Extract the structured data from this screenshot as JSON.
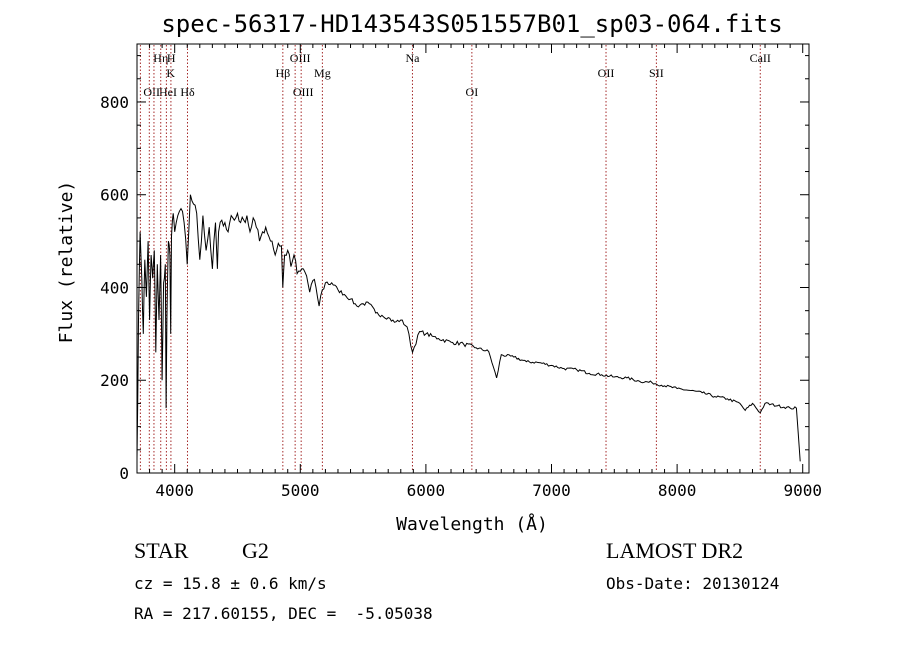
{
  "chart_data": {
    "type": "line",
    "title": "spec-56317-HD143543S051557B01_sp03-064.fits",
    "xlabel": "Wavelength (Å)",
    "ylabel": "Flux (relative)",
    "xlim": [
      3700,
      9050
    ],
    "ylim": [
      0,
      925
    ],
    "xticks": [
      4000,
      5000,
      6000,
      7000,
      8000,
      9000
    ],
    "xtick_labels": [
      "4000",
      "5000",
      "6000",
      "7000",
      "8000",
      "9000"
    ],
    "yticks": [
      0,
      200,
      400,
      600,
      800
    ],
    "ytick_labels": [
      "0",
      "200",
      "400",
      "600",
      "800"
    ],
    "grid": false,
    "line_color": "#000000",
    "marker_color": "#a52a2a",
    "series": [
      {
        "x": [
          3700,
          3712,
          3725,
          3738,
          3750,
          3762,
          3775,
          3788,
          3800,
          3812,
          3825,
          3838,
          3850,
          3862,
          3875,
          3888,
          3900,
          3912,
          3925,
          3932,
          3938,
          3950,
          3962,
          3968,
          3975,
          3988,
          4000,
          4025,
          4050,
          4075,
          4100,
          4125,
          4150,
          4175,
          4200,
          4225,
          4250,
          4275,
          4300,
          4325,
          4340,
          4350,
          4375,
          4400,
          4425,
          4450,
          4475,
          4500,
          4525,
          4550,
          4575,
          4600,
          4625,
          4650,
          4675,
          4700,
          4725,
          4750,
          4775,
          4800,
          4825,
          4850,
          4861,
          4875,
          4900,
          4925,
          4950,
          4975,
          5000,
          5025,
          5050,
          5075,
          5100,
          5125,
          5150,
          5175,
          5200,
          5250,
          5300,
          5350,
          5400,
          5450,
          5500,
          5550,
          5600,
          5650,
          5700,
          5750,
          5800,
          5850,
          5893,
          5950,
          6000,
          6050,
          6100,
          6200,
          6300,
          6400,
          6500,
          6563,
          6600,
          6700,
          6800,
          6900,
          7000,
          7100,
          7200,
          7300,
          7400,
          7500,
          7600,
          7700,
          7800,
          7900,
          8000,
          8100,
          8200,
          8300,
          8400,
          8500,
          8542,
          8600,
          8662,
          8700,
          8800,
          8900,
          8950,
          8980
        ],
        "y": [
          30,
          330,
          520,
          420,
          300,
          460,
          380,
          500,
          330,
          470,
          420,
          480,
          260,
          450,
          330,
          470,
          200,
          410,
          450,
          140,
          330,
          500,
          470,
          300,
          510,
          560,
          520,
          555,
          570,
          540,
          450,
          600,
          580,
          560,
          460,
          555,
          480,
          530,
          440,
          540,
          440,
          520,
          545,
          540,
          520,
          555,
          545,
          560,
          540,
          545,
          555,
          520,
          550,
          530,
          500,
          520,
          530,
          510,
          500,
          470,
          495,
          490,
          400,
          470,
          480,
          445,
          470,
          430,
          435,
          440,
          425,
          390,
          415,
          400,
          360,
          395,
          410,
          410,
          395,
          385,
          375,
          360,
          365,
          365,
          345,
          340,
          335,
          325,
          330,
          315,
          260,
          305,
          300,
          295,
          290,
          282,
          278,
          270,
          262,
          205,
          255,
          250,
          240,
          238,
          232,
          225,
          223,
          215,
          212,
          207,
          205,
          198,
          195,
          188,
          182,
          178,
          173,
          165,
          160,
          150,
          135,
          150,
          130,
          150,
          145,
          140,
          140,
          25
        ]
      }
    ],
    "lines": [
      {
        "x": 3727,
        "label": "OII",
        "row": 3,
        "anchor": "start",
        "dx": 3
      },
      {
        "x": 3798,
        "label": "Hη",
        "row": 1,
        "anchor": "start",
        "dx": 4
      },
      {
        "x": 3835,
        "label": "HeI",
        "row": 3,
        "anchor": "start",
        "dx": 5
      },
      {
        "x": 3889,
        "label": "",
        "row": 0,
        "anchor": "start",
        "dx": 0
      },
      {
        "x": 3934,
        "label": "K",
        "row": 2,
        "anchor": "start",
        "dx": 0
      },
      {
        "x": 3970,
        "label": "H",
        "row": 1,
        "anchor": "start",
        "dx": -4
      },
      {
        "x": 4102,
        "label": "Hδ",
        "row": 3,
        "anchor": "middle",
        "dx": 0
      },
      {
        "x": 4861,
        "label": "Hβ",
        "row": 2,
        "anchor": "middle",
        "dx": 0
      },
      {
        "x": 4959,
        "label": "OIII",
        "row": 1,
        "anchor": "middle",
        "dx": 5
      },
      {
        "x": 5007,
        "label": "OIII",
        "row": 3,
        "anchor": "middle",
        "dx": 2
      },
      {
        "x": 5176,
        "label": "Mg",
        "row": 2,
        "anchor": "middle",
        "dx": 0
      },
      {
        "x": 5893,
        "label": "Na",
        "row": 1,
        "anchor": "middle",
        "dx": 0
      },
      {
        "x": 6366,
        "label": "OI",
        "row": 3,
        "anchor": "middle",
        "dx": 0
      },
      {
        "x": 7434,
        "label": "OII",
        "row": 2,
        "anchor": "middle",
        "dx": 0
      },
      {
        "x": 7835,
        "label": "SII",
        "row": 2,
        "anchor": "middle",
        "dx": 0
      },
      {
        "x": 8662,
        "label": "CaII",
        "row": 1,
        "anchor": "middle",
        "dx": 0
      }
    ]
  },
  "footer": {
    "object_type": "STAR",
    "subclass": "G2",
    "survey": "LAMOST DR2",
    "redshift": "cz = 15.8 ± 0.6 km/s",
    "obs_date": "Obs-Date: 20130124",
    "coords": "RA = 217.60155, DEC =  -5.05038"
  }
}
